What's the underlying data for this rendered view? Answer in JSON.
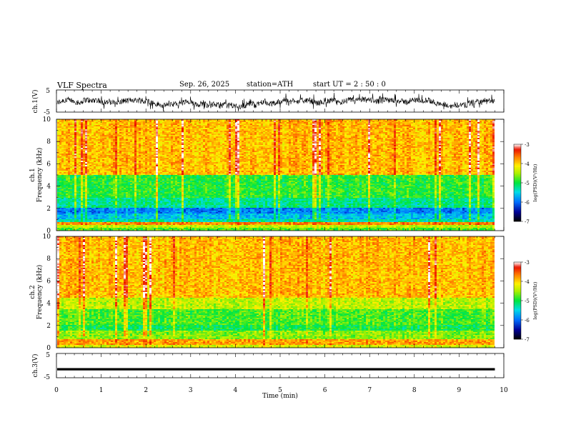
{
  "header": {
    "title": "VLF  Spectra",
    "date": "Sep. 26, 2025",
    "station": "station=ATH",
    "start_ut": "start  UT  =   2  : 50 : 0"
  },
  "chart_data": [
    {
      "type": "line",
      "name": "ch1-waveform",
      "ylabel": "ch.1(V)",
      "ylim": [
        -5,
        5
      ],
      "yticks": [
        "5",
        "-5"
      ],
      "xlim": [
        0,
        10
      ],
      "x_extent_min": 9.8,
      "description_values": "dense noisy waveform approx between -4 and 2 V"
    },
    {
      "type": "heatmap",
      "name": "ch1-spectrogram",
      "ylabel": "ch.1\nFrequency  (kHz)",
      "ylabel_top": "ch.1",
      "ylabel_bottom": "Frequency  (kHz)",
      "ylim": [
        0,
        10
      ],
      "yticks": [
        "0",
        "2",
        "4",
        "6",
        "8",
        "10"
      ],
      "xlim": [
        0,
        10
      ],
      "colorbar": {
        "label": "log(PSD)(V²/Hz)",
        "range": [
          -7,
          -3
        ],
        "ticks": [
          "-3",
          "-4",
          "-5",
          "-6",
          "-7"
        ]
      },
      "bands": [
        {
          "f": [
            0.0,
            0.3
          ],
          "level": -4.8
        },
        {
          "f": [
            0.3,
            0.5
          ],
          "level": -4.4
        },
        {
          "f": [
            0.5,
            0.8
          ],
          "level": -3.7
        },
        {
          "f": [
            0.8,
            1.0
          ],
          "level": -5.3
        },
        {
          "f": [
            1.0,
            1.6
          ],
          "level": -5.6
        },
        {
          "f": [
            1.6,
            2.0
          ],
          "level": -5.9
        },
        {
          "f": [
            2.0,
            3.0
          ],
          "level": -5.2
        },
        {
          "f": [
            3.0,
            5.0
          ],
          "level": -4.9
        },
        {
          "f": [
            5.0,
            10.0
          ],
          "level": -3.9
        }
      ]
    },
    {
      "type": "heatmap",
      "name": "ch2-spectrogram",
      "ylabel": "ch.2\nFrequency  (kHz)",
      "ylabel_top": "ch.2",
      "ylabel_bottom": "Frequency  (kHz)",
      "ylim": [
        0,
        10
      ],
      "yticks": [
        "0",
        "2",
        "4",
        "6",
        "8",
        "10"
      ],
      "xlim": [
        0,
        10
      ],
      "colorbar": {
        "label": "log(PSD)(V²/Hz)",
        "range": [
          -7,
          -3
        ],
        "ticks": [
          "-3",
          "-4",
          "-5",
          "-6",
          "-7"
        ]
      },
      "bands": [
        {
          "f": [
            0.0,
            0.3
          ],
          "level": -4.3
        },
        {
          "f": [
            0.3,
            0.8
          ],
          "level": -3.8
        },
        {
          "f": [
            0.8,
            1.5
          ],
          "level": -4.6
        },
        {
          "f": [
            1.5,
            2.0
          ],
          "level": -5.0
        },
        {
          "f": [
            2.0,
            3.5
          ],
          "level": -4.8
        },
        {
          "f": [
            3.5,
            4.5
          ],
          "level": -4.4
        },
        {
          "f": [
            4.5,
            10.0
          ],
          "level": -3.9
        }
      ]
    },
    {
      "type": "line",
      "name": "ch3-waveform",
      "ylabel": "ch.3(V)",
      "ylim": [
        -5,
        5
      ],
      "yticks": [
        "5",
        "-5"
      ],
      "xlim": [
        0,
        10
      ],
      "description_values": "near-constant signal at about -1.5 V",
      "level": -1.5,
      "xlabel": "Time  (min)",
      "xticks": [
        "0",
        "1",
        "2",
        "3",
        "4",
        "5",
        "6",
        "7",
        "8",
        "9",
        "10"
      ]
    }
  ]
}
